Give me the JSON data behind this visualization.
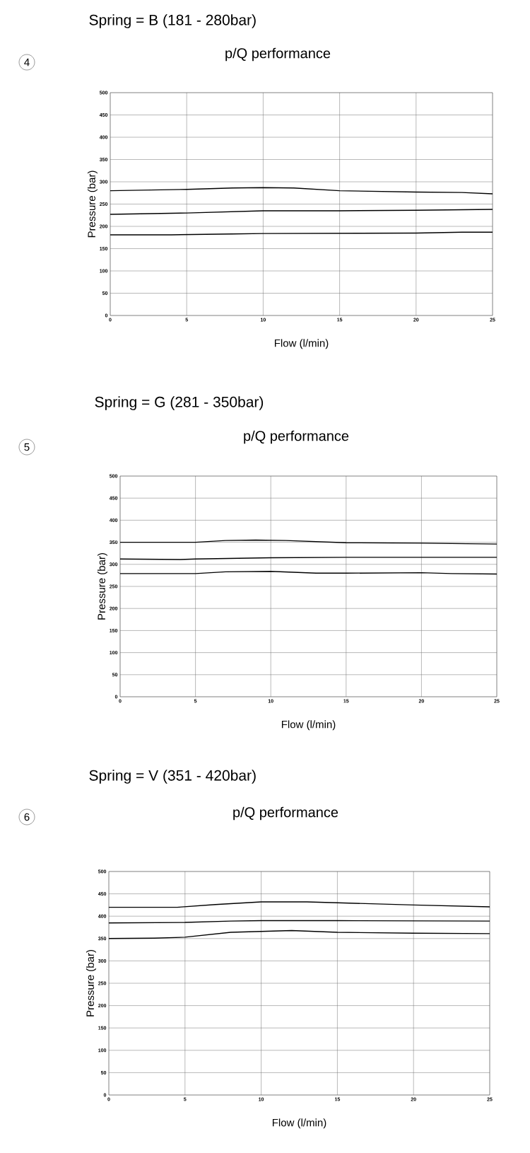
{
  "chart_data": [
    {
      "type": "line",
      "subtitle": "Spring = B (181 - 280bar)",
      "title": "p/Q performance",
      "xlabel": "Flow (l/min)",
      "ylabel": "Pressure (bar)",
      "annotations": [
        "4"
      ],
      "xlim": [
        0,
        25
      ],
      "ylim": [
        0,
        500
      ],
      "xticks": [
        0,
        5,
        10,
        15,
        20,
        25
      ],
      "yticks": [
        0,
        50,
        100,
        150,
        200,
        250,
        300,
        350,
        400,
        450,
        500
      ],
      "grid": true,
      "marker": "none",
      "series": [
        {
          "color": "#000000",
          "x": [
            0,
            5,
            8,
            10,
            12,
            15,
            20,
            23,
            25
          ],
          "values": [
            280,
            283,
            286,
            287,
            286,
            280,
            277,
            276,
            273
          ]
        },
        {
          "color": "#000000",
          "x": [
            0,
            5,
            10,
            15,
            20,
            25
          ],
          "values": [
            227,
            230,
            235,
            235,
            236,
            238
          ]
        },
        {
          "color": "#000000",
          "x": [
            0,
            4,
            8,
            10,
            20,
            23,
            25
          ],
          "values": [
            181,
            181,
            183,
            184,
            185,
            187,
            187
          ]
        }
      ]
    },
    {
      "type": "line",
      "subtitle": "Spring = G (281 - 350bar)",
      "title": "p/Q performance",
      "xlabel": "Flow (l/min)",
      "ylabel": "Pressure (bar)",
      "annotations": [
        "5"
      ],
      "xlim": [
        0,
        25
      ],
      "ylim": [
        0,
        500
      ],
      "xticks": [
        0,
        5,
        10,
        15,
        20,
        25
      ],
      "yticks": [
        0,
        50,
        100,
        150,
        200,
        250,
        300,
        350,
        400,
        450,
        500
      ],
      "grid": true,
      "marker": "none",
      "series": [
        {
          "color": "#000000",
          "x": [
            0,
            5,
            7,
            9,
            11,
            15,
            20,
            25
          ],
          "values": [
            350,
            350,
            354,
            355,
            354,
            349,
            348,
            346
          ]
        },
        {
          "color": "#000000",
          "x": [
            0,
            4,
            5,
            10,
            15,
            25
          ],
          "values": [
            312,
            311,
            312,
            315,
            316,
            316
          ]
        },
        {
          "color": "#000000",
          "x": [
            0,
            5,
            7,
            10,
            13,
            15,
            20,
            22,
            25
          ],
          "values": [
            279,
            279,
            283,
            284,
            280,
            280,
            281,
            279,
            278
          ]
        }
      ]
    },
    {
      "type": "line",
      "subtitle": "Spring = V (351 - 420bar)",
      "title": "p/Q performance",
      "xlabel": "Flow (l/min)",
      "ylabel": "Pressure (bar)",
      "annotations": [
        "6"
      ],
      "xlim": [
        0,
        25
      ],
      "ylim": [
        0,
        500
      ],
      "xticks": [
        0,
        5,
        10,
        15,
        20,
        25
      ],
      "yticks": [
        0,
        50,
        100,
        150,
        200,
        250,
        300,
        350,
        400,
        450,
        500
      ],
      "grid": true,
      "marker": "none",
      "series": [
        {
          "color": "#000000",
          "x": [
            0,
            4.5,
            7,
            10,
            13,
            15,
            20,
            25
          ],
          "values": [
            420,
            420,
            426,
            432,
            432,
            430,
            425,
            421
          ]
        },
        {
          "color": "#000000",
          "x": [
            0,
            5,
            8,
            10,
            15,
            25
          ],
          "values": [
            385,
            386,
            389,
            390,
            390,
            389
          ]
        },
        {
          "color": "#000000",
          "x": [
            0,
            3,
            5,
            8,
            12,
            15,
            20,
            25
          ],
          "values": [
            350,
            351,
            353,
            364,
            368,
            364,
            362,
            361
          ]
        }
      ]
    }
  ]
}
